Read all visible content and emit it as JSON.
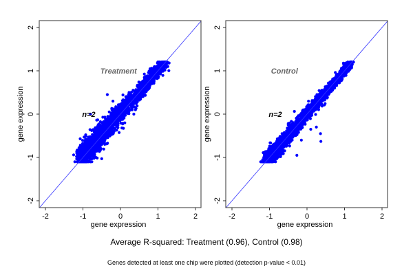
{
  "chart_data": [
    {
      "type": "scatter",
      "title": "Treatment",
      "annotation": "n=2",
      "xlabel": "gene expression",
      "ylabel": "gene expression",
      "xlim": [
        -2.15,
        2.15
      ],
      "ylim": [
        -2.15,
        2.15
      ],
      "xticks": [
        "-2",
        "-1",
        "0",
        "1",
        "2"
      ],
      "yticks": [
        "-2",
        "-1",
        "0",
        "1",
        "2"
      ],
      "reference_line": "y = x",
      "point_color": "#0000ff",
      "line_color": "#3333ff",
      "cloud": {
        "x_range": [
          -1.05,
          1.2
        ],
        "y_range": [
          -1.1,
          1.2
        ],
        "spread": 0.13,
        "r_squared": 0.96,
        "n_points": 2200,
        "seed": 7
      },
      "outliers": [
        [
          -0.35,
          0.45
        ],
        [
          -0.75,
          -0.95
        ],
        [
          -0.5,
          -1.03
        ],
        [
          0.55,
          0.62
        ],
        [
          -0.8,
          0.0
        ],
        [
          -0.2,
          0.3
        ],
        [
          0.4,
          0.1
        ]
      ]
    },
    {
      "type": "scatter",
      "title": "Control",
      "annotation": "n=2",
      "xlabel": "gene expression",
      "ylabel": "gene expression",
      "xlim": [
        -2.15,
        2.15
      ],
      "ylim": [
        -2.15,
        2.15
      ],
      "xticks": [
        "-2",
        "-1",
        "0",
        "1",
        "2"
      ],
      "yticks": [
        "-2",
        "-1",
        "0",
        "1",
        "2"
      ],
      "reference_line": "y = x",
      "point_color": "#0000ff",
      "line_color": "#3333ff",
      "cloud": {
        "x_range": [
          -1.1,
          1.2
        ],
        "y_range": [
          -1.1,
          1.2
        ],
        "spread": 0.09,
        "r_squared": 0.98,
        "n_points": 2200,
        "seed": 11
      },
      "outliers": [
        [
          -0.27,
          -0.95
        ],
        [
          0.37,
          -0.63
        ],
        [
          0.36,
          -0.45
        ],
        [
          0.25,
          -0.3
        ],
        [
          0.1,
          -0.35
        ],
        [
          -0.15,
          -0.6
        ],
        [
          -0.5,
          -0.25
        ],
        [
          0.05,
          0.15
        ]
      ]
    }
  ],
  "caption": {
    "main": "Average R-squared: Treatment (0.96), Control (0.98)",
    "sub": "Genes detected at least one chip were plotted (detection p-value < 0.01)"
  }
}
